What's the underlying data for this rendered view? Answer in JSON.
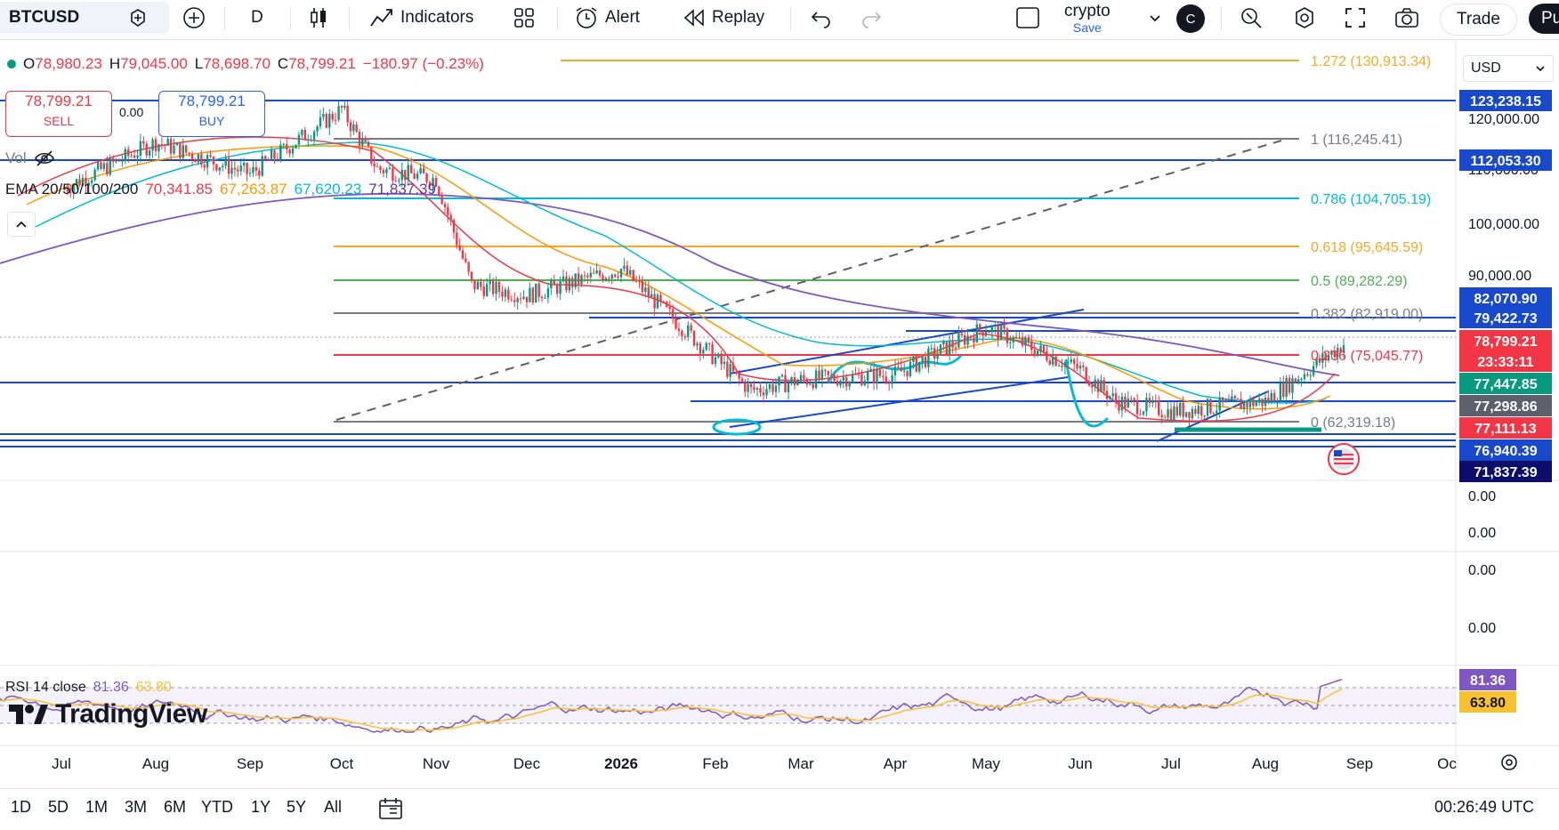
{
  "toolbar": {
    "symbol": "BTCUSD",
    "interval": "D",
    "indicators_label": "Indicators",
    "alert_label": "Alert",
    "replay_label": "Replay",
    "layout_name": "crypto",
    "layout_save": "Save",
    "avatar_letter": "C",
    "trade_label": "Trade",
    "publish_label": "Pu"
  },
  "legend": {
    "open_label": "O",
    "open": "78,980.23",
    "high_label": "H",
    "high": "79,045.00",
    "low_label": "L",
    "low": "78,698.70",
    "close_label": "C",
    "close": "78,799.21",
    "change": "−180.97 (−0.23%)",
    "sell_price": "78,799.21",
    "sell_label": "SELL",
    "spread": "0.00",
    "buy_price": "78,799.21",
    "buy_label": "BUY",
    "vol_label": "Vol",
    "ema_label": "EMA 20/50/100/200",
    "ema20": "70,341.85",
    "ema50": "67,263.87",
    "ema100": "67,620.23",
    "ema200": "71,837.39",
    "rsi_label": "RSI 14 close",
    "rsi_value": "81.36",
    "rsi_ma": "63.80"
  },
  "price_scale": {
    "currency": "USD",
    "ticks": [
      "120,000.00",
      "110,000.00",
      "100,000.00",
      "90,000.00"
    ],
    "empty_ticks": [
      "0.00",
      "0.00",
      "0.00",
      "0.00"
    ],
    "level_labels": [
      {
        "text": "123,238.15",
        "bg": "#1848cc"
      },
      {
        "text": "112,053.30",
        "bg": "#1848cc"
      },
      {
        "text": "82,070.90",
        "bg": "#1848cc"
      },
      {
        "text": "79,422.73",
        "bg": "#1848cc"
      },
      {
        "text": "78,799.21",
        "bg": "#f23645"
      },
      {
        "text": "23:33:11",
        "bg": "#f23645"
      },
      {
        "text": "77,447.85",
        "bg": "#089981"
      },
      {
        "text": "77,298.86",
        "bg": "#5d606b"
      },
      {
        "text": "77,111.13",
        "bg": "#f23645"
      },
      {
        "text": "76,940.39",
        "bg": "#1848cc"
      },
      {
        "text": "71,837.39",
        "bg": "#0d0d6b"
      }
    ],
    "rsi_labels": [
      {
        "text": "81.36",
        "bg": "#7e57c2"
      },
      {
        "text": "63.80",
        "bg": "#fbc02d"
      }
    ]
  },
  "fib_labels": [
    {
      "text": "1.272 (130,913.34)",
      "color": "#f9a825"
    },
    {
      "text": "1 (116,245.41)",
      "color": "#787b86"
    },
    {
      "text": "0.786 (104,705.19)",
      "color": "#00bcd4"
    },
    {
      "text": "0.618 (95,645.59)",
      "color": "#f9a825"
    },
    {
      "text": "0.5 (89,282.29)",
      "color": "#4caf50"
    },
    {
      "text": "0.382 (82,919.00)",
      "color": "#787b86"
    },
    {
      "text": "0.236 (75,045.77)",
      "color": "#f23645"
    },
    {
      "text": "0 (62,319.18)",
      "color": "#787b86"
    }
  ],
  "time_axis": [
    "Jul",
    "Aug",
    "Sep",
    "Oct",
    "Nov",
    "Dec",
    "2026",
    "Feb",
    "Mar",
    "Apr",
    "May",
    "Jun",
    "Jul",
    "Aug",
    "Sep",
    "Oc"
  ],
  "bottom": {
    "ranges": [
      "1D",
      "5D",
      "1M",
      "3M",
      "6M",
      "YTD",
      "1Y",
      "5Y",
      "All"
    ],
    "clock": "00:26:49 UTC",
    "brand": "TradingView"
  },
  "chart_data": {
    "type": "line",
    "title": "BTCUSD",
    "interval": "D",
    "approx_close_path": [
      [
        "Jul",
        108000
      ],
      [
        "Aug",
        117000
      ],
      [
        "Sep",
        111000
      ],
      [
        "Oct",
        123238
      ],
      [
        "Oct",
        112000
      ],
      [
        "Nov",
        110000
      ],
      [
        "Nov",
        90000
      ],
      [
        "Dec",
        88000
      ],
      [
        "Jan",
        93000
      ],
      [
        "Feb",
        76000
      ],
      [
        "Feb",
        70000
      ],
      [
        "Mar",
        72000
      ],
      [
        "Apr",
        73000
      ],
      [
        "May",
        82000
      ],
      [
        "Jun",
        74000
      ],
      [
        "Jun",
        68000
      ],
      [
        "Jul",
        66000
      ],
      [
        "Aug",
        68000
      ],
      [
        "Aug",
        78799
      ]
    ],
    "fib_levels": [
      130913.34,
      116245.41,
      104705.19,
      95645.59,
      89282.29,
      82919.0,
      75045.77,
      62319.18
    ],
    "horizontal_levels": [
      123238.15,
      112053.3,
      82070.9,
      79422.73,
      77447.85,
      77298.86,
      77111.13,
      76940.39,
      71837.39
    ],
    "last_price": 78799.21,
    "rsi_last": 81.36,
    "rsi_ma_last": 63.8
  }
}
